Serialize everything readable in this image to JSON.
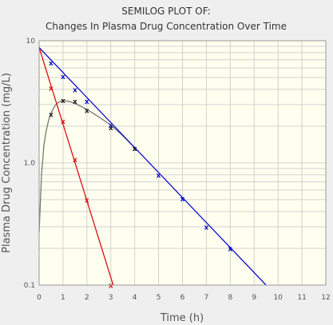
{
  "chart_data": {
    "type": "line",
    "title": "SEMILOG PLOT OF:",
    "subtitle": "Changes In Plasma Drug Concentration Over Time",
    "xlabel": "Time (h)",
    "ylabel": "Plasma Drug Concentration (mg/L)",
    "y_scale": "log",
    "xlim": [
      0,
      12
    ],
    "ylim": [
      0.1,
      10
    ],
    "grid": true,
    "x_ticks": [
      "0",
      "1",
      "2",
      "3",
      "4",
      "5",
      "6",
      "7",
      "8",
      "9",
      "10",
      "11",
      "12"
    ],
    "y_ticks": [
      {
        "value": 10,
        "label": "10"
      },
      {
        "value": 1,
        "label": "1.0"
      },
      {
        "value": 0.1,
        "label": "0.1"
      }
    ],
    "marker_symbol": "x",
    "colors": {
      "red": "#dd1111",
      "blue": "#1111cc",
      "black": "#222222",
      "curve": "#777777",
      "plot_bg": "#fffff0"
    },
    "series": [
      {
        "color": "red",
        "line": {
          "x": [
            0,
            3.1
          ],
          "y": [
            8.8,
            0.1
          ]
        },
        "points": [
          {
            "x": 0.5,
            "y": 4.1
          },
          {
            "x": 1.0,
            "y": 2.2
          },
          {
            "x": 1.5,
            "y": 1.07
          },
          {
            "x": 2.0,
            "y": 0.5
          },
          {
            "x": 3.0,
            "y": 0.1
          }
        ]
      },
      {
        "color": "blue",
        "line": {
          "x": [
            0,
            9.5
          ],
          "y": [
            8.8,
            0.1
          ]
        },
        "points": [
          {
            "x": 0.5,
            "y": 6.6
          },
          {
            "x": 1.0,
            "y": 5.1
          },
          {
            "x": 1.5,
            "y": 4.0
          },
          {
            "x": 2.0,
            "y": 3.2
          },
          {
            "x": 3.0,
            "y": 2.05
          },
          {
            "x": 4.0,
            "y": 1.32
          },
          {
            "x": 5.0,
            "y": 0.8
          },
          {
            "x": 6.0,
            "y": 0.51
          },
          {
            "x": 7.0,
            "y": 0.3
          },
          {
            "x": 8.0,
            "y": 0.2
          }
        ]
      },
      {
        "color": "black",
        "points": [
          {
            "x": 0.5,
            "y": 2.5
          },
          {
            "x": 1.0,
            "y": 3.25
          },
          {
            "x": 1.5,
            "y": 3.2
          },
          {
            "x": 2.0,
            "y": 2.7
          },
          {
            "x": 3.0,
            "y": 1.95
          },
          {
            "x": 4.0,
            "y": 1.32
          }
        ]
      }
    ],
    "fitted_curve": {
      "color": "curve",
      "x": [
        0,
        0.1,
        0.2,
        0.3,
        0.4,
        0.5,
        0.6,
        0.7,
        0.8,
        0.9,
        1.0,
        1.1,
        1.2,
        1.4,
        1.6,
        1.8,
        2.0,
        2.5,
        3.0,
        3.5,
        4.0
      ],
      "y": [
        0.27,
        0.8,
        1.4,
        1.85,
        2.25,
        2.55,
        2.8,
        3.0,
        3.12,
        3.2,
        3.22,
        3.22,
        3.2,
        3.12,
        3.0,
        2.87,
        2.74,
        2.38,
        2.04,
        1.67,
        1.33
      ]
    }
  }
}
